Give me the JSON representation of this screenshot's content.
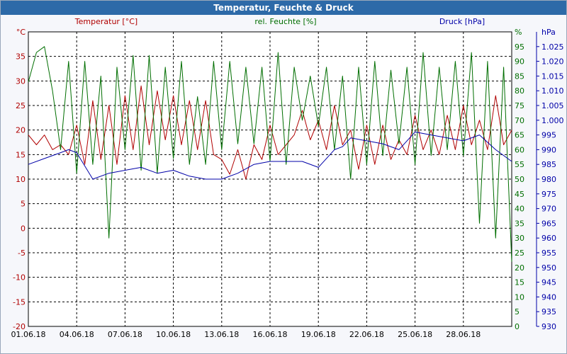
{
  "window": {
    "title": "Temperatur, Feuchte & Druck"
  },
  "colors": {
    "temperature": "#b00000",
    "humidity": "#006e00",
    "pressure": "#0000a8",
    "title_bar": "#2d6aa8",
    "background": "#f6f7fb",
    "grid": "#000000"
  },
  "chart_data": {
    "type": "line",
    "title": "Temperatur, Feuchte & Druck",
    "grid": true,
    "x_axis": {
      "tick_labels": [
        "01.06.18",
        "04.06.18",
        "07.06.18",
        "10.06.18",
        "13.06.18",
        "16.06.18",
        "19.06.18",
        "22.06.18",
        "25.06.18",
        "28.06.18"
      ],
      "range_days": [
        0,
        30
      ]
    },
    "y_left": {
      "label": "Temperatur [°C]",
      "unit_label": "°C",
      "range": [
        -20,
        40
      ],
      "ticks": [
        "35",
        "30",
        "25",
        "20",
        "15",
        "10",
        "5",
        "0",
        "-5",
        "-10",
        "-15",
        "-20"
      ]
    },
    "y_right_1": {
      "label": "rel. Feuchte [%]",
      "unit_label": "%",
      "range": [
        0,
        100
      ],
      "ticks": [
        "95",
        "90",
        "85",
        "80",
        "75",
        "70",
        "65",
        "60",
        "55",
        "50",
        "45",
        "40",
        "35",
        "30",
        "25",
        "20",
        "15",
        "10",
        "5",
        "0"
      ]
    },
    "y_right_2": {
      "label": "Druck [hPa]",
      "unit_label": "hPa",
      "range": [
        930,
        1030
      ],
      "ticks": [
        "1.025",
        "1.020",
        "1.015",
        "1.010",
        "1.005",
        "1.000",
        "995",
        "990",
        "985",
        "980",
        "975",
        "970",
        "965",
        "960",
        "955",
        "950",
        "945",
        "940",
        "935",
        "930"
      ]
    },
    "series": [
      {
        "name": "Temperatur [°C]",
        "axis": "left",
        "color": "#b00000",
        "x": [
          0,
          0.5,
          1,
          1.5,
          2,
          2.5,
          3,
          3.5,
          4,
          4.5,
          5,
          5.5,
          6,
          6.5,
          7,
          7.5,
          8,
          8.5,
          9,
          9.5,
          10,
          10.5,
          11,
          11.5,
          12,
          12.5,
          13,
          13.5,
          14,
          14.5,
          15,
          15.5,
          16,
          16.5,
          17,
          17.5,
          18,
          18.5,
          19,
          19.5,
          20,
          20.5,
          21,
          21.5,
          22,
          22.5,
          23,
          23.5,
          24,
          24.5,
          25,
          25.5,
          26,
          26.5,
          27,
          27.5,
          28,
          28.5,
          29,
          29.5,
          30
        ],
        "y": [
          19,
          17,
          19,
          16,
          17,
          15,
          21,
          13,
          26,
          14,
          25,
          13,
          27,
          16,
          29,
          17,
          28,
          18,
          27,
          17,
          26,
          16,
          26,
          15,
          14,
          11,
          16,
          10,
          17,
          14,
          21,
          15,
          17,
          19,
          24,
          18,
          22,
          16,
          25,
          17,
          20,
          12,
          21,
          13,
          21,
          14,
          18,
          15,
          23,
          16,
          20,
          15,
          23,
          16,
          25,
          17,
          22,
          16,
          27,
          17,
          20
        ]
      },
      {
        "name": "rel. Feuchte [%]",
        "axis": "right_1",
        "color": "#006e00",
        "x": [
          0,
          0.5,
          1,
          1.5,
          2,
          2.5,
          3,
          3.5,
          4,
          4.5,
          5,
          5.5,
          6,
          6.5,
          7,
          7.5,
          8,
          8.5,
          9,
          9.5,
          10,
          10.5,
          11,
          11.5,
          12,
          12.5,
          13,
          13.5,
          14,
          14.5,
          15,
          15.5,
          16,
          16.5,
          17,
          17.5,
          18,
          18.5,
          19,
          19.5,
          20,
          20.5,
          21,
          21.5,
          22,
          22.5,
          23,
          23.5,
          24,
          24.5,
          25,
          25.5,
          26,
          26.5,
          27,
          27.5,
          28,
          28.5,
          29,
          29.5,
          30
        ],
        "y": [
          83,
          93,
          95,
          80,
          60,
          90,
          52,
          90,
          55,
          85,
          30,
          88,
          60,
          92,
          53,
          92,
          52,
          88,
          57,
          90,
          55,
          78,
          55,
          90,
          60,
          90,
          62,
          88,
          62,
          88,
          56,
          93,
          55,
          88,
          70,
          85,
          68,
          88,
          60,
          85,
          50,
          88,
          55,
          90,
          58,
          87,
          62,
          88,
          55,
          93,
          58,
          88,
          60,
          90,
          58,
          93,
          35,
          90,
          30,
          88,
          22
        ]
      },
      {
        "name": "Druck [hPa]",
        "axis": "right_2",
        "color": "#0000a8",
        "x": [
          0,
          1,
          2,
          2.5,
          3,
          4,
          5,
          6,
          7,
          8,
          9,
          10,
          11,
          12,
          13,
          14,
          15,
          16,
          17,
          18,
          19,
          19.5,
          20,
          21,
          22,
          23,
          24,
          25,
          26,
          27,
          28,
          29,
          30
        ],
        "y": [
          985,
          987,
          989,
          990,
          989,
          980,
          982,
          983,
          984,
          982,
          983,
          981,
          980,
          980,
          982,
          985,
          986,
          986,
          986,
          984,
          990,
          991,
          994,
          993,
          992,
          990,
          996,
          995,
          994,
          993,
          995,
          990,
          986
        ]
      }
    ]
  }
}
